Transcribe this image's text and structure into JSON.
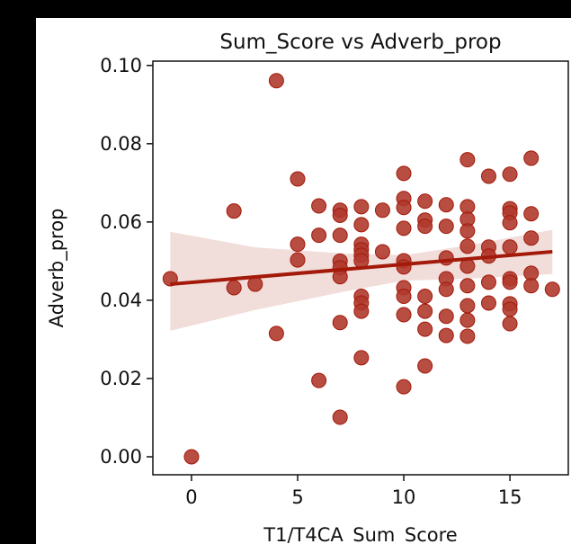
{
  "chart_data": {
    "type": "scatter",
    "title": "Sum_Score vs Adverb_prop",
    "x_label": "T1/T4CA_Sum_Score",
    "y_label": "Adverb_prop",
    "color": "#b03a2e",
    "x": [
      -1,
      0,
      2,
      2,
      3,
      4,
      4,
      5,
      5,
      5,
      6,
      6,
      6,
      7,
      7,
      7,
      7,
      7,
      7,
      7,
      7,
      8,
      8,
      8,
      8,
      8,
      8,
      8,
      8,
      8,
      8,
      9,
      9,
      10,
      10,
      10,
      10,
      10,
      10,
      10,
      10,
      10,
      10,
      11,
      11,
      11,
      11,
      11,
      11,
      11,
      12,
      12,
      12,
      12,
      12,
      12,
      12,
      13,
      13,
      13,
      13,
      13,
      13,
      13,
      13,
      13,
      13,
      14,
      14,
      14,
      14,
      14,
      15,
      15,
      15,
      15,
      15,
      15,
      15,
      15,
      15,
      15,
      16,
      16,
      16,
      16,
      16,
      17
    ],
    "values": [
      0.0455,
      0.0,
      0.0628,
      0.0432,
      0.0441,
      0.0961,
      0.0315,
      0.071,
      0.0543,
      0.0503,
      0.0641,
      0.0566,
      0.0195,
      0.063,
      0.0617,
      0.0566,
      0.05,
      0.0483,
      0.046,
      0.0343,
      0.0101,
      0.0639,
      0.0593,
      0.0543,
      0.0529,
      0.0515,
      0.0501,
      0.041,
      0.0393,
      0.0372,
      0.0253,
      0.0524,
      0.063,
      0.0724,
      0.066,
      0.0637,
      0.0584,
      0.0501,
      0.0485,
      0.0432,
      0.041,
      0.0363,
      0.0179,
      0.0653,
      0.0605,
      0.0589,
      0.041,
      0.0372,
      0.0326,
      0.0232,
      0.0644,
      0.0589,
      0.0508,
      0.0455,
      0.0428,
      0.0359,
      0.031,
      0.0639,
      0.0607,
      0.0577,
      0.0538,
      0.0487,
      0.0437,
      0.0386,
      0.0349,
      0.0308,
      0.0759,
      0.0717,
      0.0536,
      0.0513,
      0.0446,
      0.0393,
      0.0722,
      0.0634,
      0.0623,
      0.0598,
      0.0536,
      0.0455,
      0.0446,
      0.0391,
      0.0377,
      0.034,
      0.0763,
      0.0621,
      0.0559,
      0.0469,
      0.0437,
      0.0428
    ],
    "regression": {
      "color": "#a31a0a",
      "x": [
        -1,
        17
      ],
      "values": [
        0.0441,
        0.0524
      ]
    },
    "ci": {
      "x": [
        -1,
        3,
        7,
        10,
        13,
        17
      ],
      "lower": [
        0.0322,
        0.0375,
        0.042,
        0.045,
        0.0455,
        0.0467
      ],
      "upper": [
        0.0575,
        0.0535,
        0.052,
        0.0515,
        0.054,
        0.058
      ]
    },
    "xlim": [
      -1.82,
      17.75
    ],
    "ylim": [
      -0.0046,
      0.1011
    ],
    "xticks": [
      0,
      5,
      10,
      15
    ],
    "yticks": [
      {
        "value": 0,
        "label": "0.00"
      },
      0.02,
      0.04,
      0.06,
      0.08,
      {
        "value": 0.1,
        "label": "0.10"
      }
    ]
  }
}
